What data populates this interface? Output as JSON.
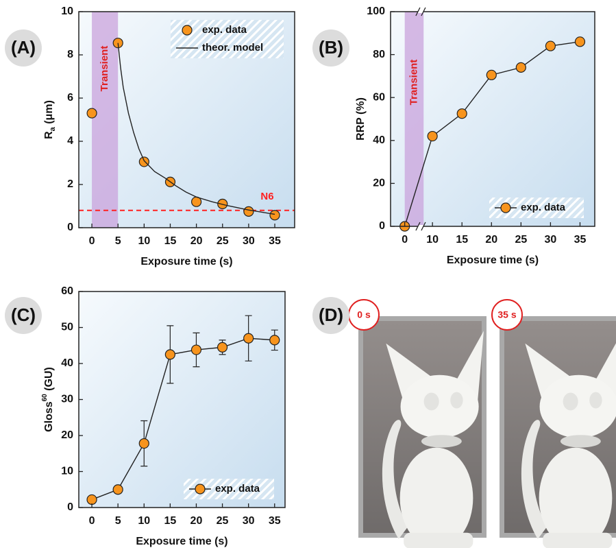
{
  "chart_data": [
    {
      "type": "line",
      "panel": "(A)",
      "xlabel": "Exposure time (s)",
      "ylabel": "R",
      "ylabel_sub": "a",
      "ylabel_unit": " (μm)",
      "x": [
        0,
        5,
        10,
        15,
        20,
        25,
        30,
        35
      ],
      "series": [
        {
          "name": "exp. data",
          "color": "#f7941d",
          "line": false,
          "marker": true,
          "values": [
            5.3,
            8.55,
            3.05,
            2.12,
            1.2,
            1.1,
            0.75,
            0.58
          ]
        },
        {
          "name": "theor. model",
          "color": "#333333",
          "line": true,
          "marker": false,
          "x": [
            5,
            5.5,
            6,
            7,
            8,
            9,
            10,
            12,
            14,
            16,
            18,
            20,
            23,
            26,
            30,
            35
          ],
          "values": [
            8.55,
            7.4,
            6.5,
            5.3,
            4.4,
            3.65,
            3.1,
            2.6,
            2.3,
            1.95,
            1.65,
            1.42,
            1.2,
            1.02,
            0.82,
            0.62
          ]
        }
      ],
      "band": {
        "range": [
          0,
          5
        ],
        "label": "Transient",
        "color": "#c9a3dc"
      },
      "hline": {
        "value": 0.8,
        "label": "N6",
        "color": "#ff2020"
      },
      "xlim": [
        -2.5,
        38.8
      ],
      "xticks": [
        0,
        5,
        10,
        15,
        20,
        25,
        30,
        35
      ],
      "ylim": [
        0,
        10
      ],
      "yticks": [
        0,
        2,
        4,
        6,
        8,
        10
      ],
      "legend": "upper right"
    },
    {
      "type": "line",
      "panel": "(B)",
      "xlabel": "Exposure time (s)",
      "ylabel": "RRP (%)",
      "x": [
        0,
        10,
        15,
        20,
        25,
        30,
        35
      ],
      "series": [
        {
          "name": "exp. data",
          "color": "#f7941d",
          "line": true,
          "marker": true,
          "values": [
            0,
            42,
            52.5,
            70.5,
            74,
            84,
            86
          ]
        }
      ],
      "band": {
        "range": [
          0,
          8.5
        ],
        "label": "Transient",
        "color": "#c9a3dc"
      },
      "xbreak": [
        2.7,
        8
      ],
      "xlim": [
        -2.4,
        37.5
      ],
      "xticks": [
        0,
        10,
        15,
        20,
        25,
        30,
        35
      ],
      "ylim": [
        0,
        100
      ],
      "yticks": [
        0,
        20,
        40,
        60,
        80,
        100
      ],
      "legend": "lower right"
    },
    {
      "type": "line",
      "panel": "(C)",
      "xlabel": "Exposure time (s)",
      "ylabel": "Gloss",
      "ylabel_sup": "60",
      "ylabel_unit": " (GU)",
      "x": [
        0,
        5,
        10,
        15,
        20,
        25,
        30,
        35
      ],
      "series": [
        {
          "name": "exp. data",
          "color": "#f7941d",
          "line": true,
          "marker": true,
          "values": [
            2.2,
            5,
            17.8,
            42.5,
            43.8,
            44.5,
            47,
            46.5
          ],
          "errors": [
            0.5,
            1,
            6.3,
            8,
            4.7,
            2,
            6.3,
            2.8
          ]
        }
      ],
      "xlim": [
        -2.5,
        37
      ],
      "xticks": [
        0,
        5,
        10,
        15,
        20,
        25,
        30,
        35
      ],
      "ylim": [
        0,
        60
      ],
      "yticks": [
        0,
        10,
        20,
        30,
        40,
        50,
        60
      ],
      "legend": "lower right"
    }
  ],
  "panel_d": {
    "panel": "(D)",
    "photos": [
      "0 s",
      "35 s"
    ]
  }
}
